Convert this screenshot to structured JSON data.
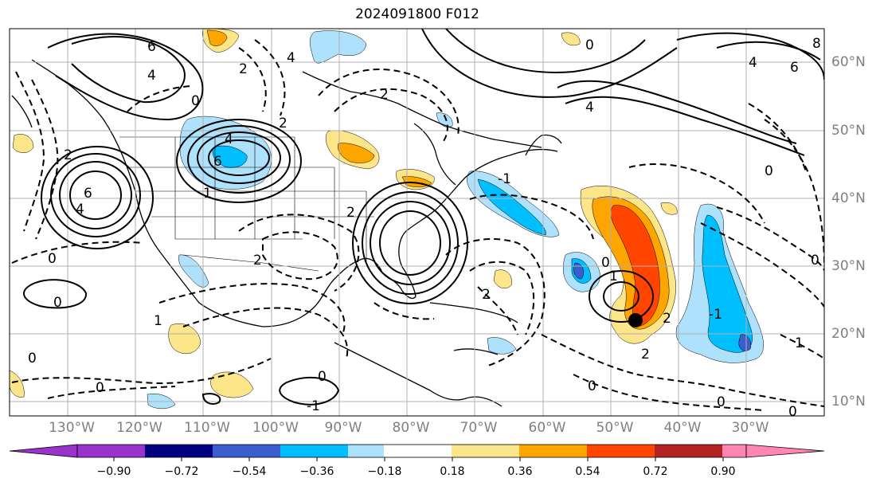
{
  "title": "2024091800 F012",
  "lon_labels": [
    "130°W",
    "120°W",
    "110°W",
    "100°W",
    "90°W",
    "80°W",
    "70°W",
    "60°W",
    "50°W",
    "40°W",
    "30°W"
  ],
  "lat_labels": [
    "60°N",
    "50°N",
    "40°N",
    "30°N",
    "20°N",
    "10°N"
  ],
  "colorbar": {
    "ticks": [
      "−0.90",
      "−0.72",
      "−0.54",
      "−0.36",
      "−0.18",
      "0.18",
      "0.36",
      "0.54",
      "0.72",
      "0.90"
    ],
    "colors": [
      "#9933cc",
      "#000080",
      "#3a5fcd",
      "#00bfff",
      "#aee1fb",
      "#ffffff",
      "#fde68a",
      "#ffa500",
      "#ff4500",
      "#b22222",
      "#ff85b3"
    ]
  },
  "contour_labels": [
    {
      "text": "6"
    },
    {
      "text": "4"
    },
    {
      "text": "2"
    },
    {
      "text": "0"
    },
    {
      "text": "2"
    },
    {
      "text": "4"
    },
    {
      "text": "6"
    },
    {
      "text": "4"
    },
    {
      "text": "2"
    },
    {
      "text": "8"
    },
    {
      "text": "6"
    },
    {
      "text": "4"
    },
    {
      "text": "4"
    },
    {
      "text": "6"
    },
    {
      "text": "4"
    },
    {
      "text": "2"
    },
    {
      "text": "0"
    },
    {
      "text": "1"
    },
    {
      "text": "2"
    },
    {
      "text": "0"
    },
    {
      "text": "0"
    },
    {
      "text": "1"
    },
    {
      "text": "0"
    },
    {
      "text": "-1"
    },
    {
      "text": "2"
    },
    {
      "text": "0"
    },
    {
      "text": "2"
    },
    {
      "text": "-1"
    },
    {
      "text": "0"
    },
    {
      "text": "0"
    },
    {
      "text": "-1"
    },
    {
      "text": "0"
    },
    {
      "text": "1"
    },
    {
      "text": "0"
    },
    {
      "text": "2"
    },
    {
      "text": "0"
    },
    {
      "text": "0"
    },
    {
      "text": "1"
    },
    {
      "text": "0"
    },
    {
      "text": "2"
    }
  ]
}
